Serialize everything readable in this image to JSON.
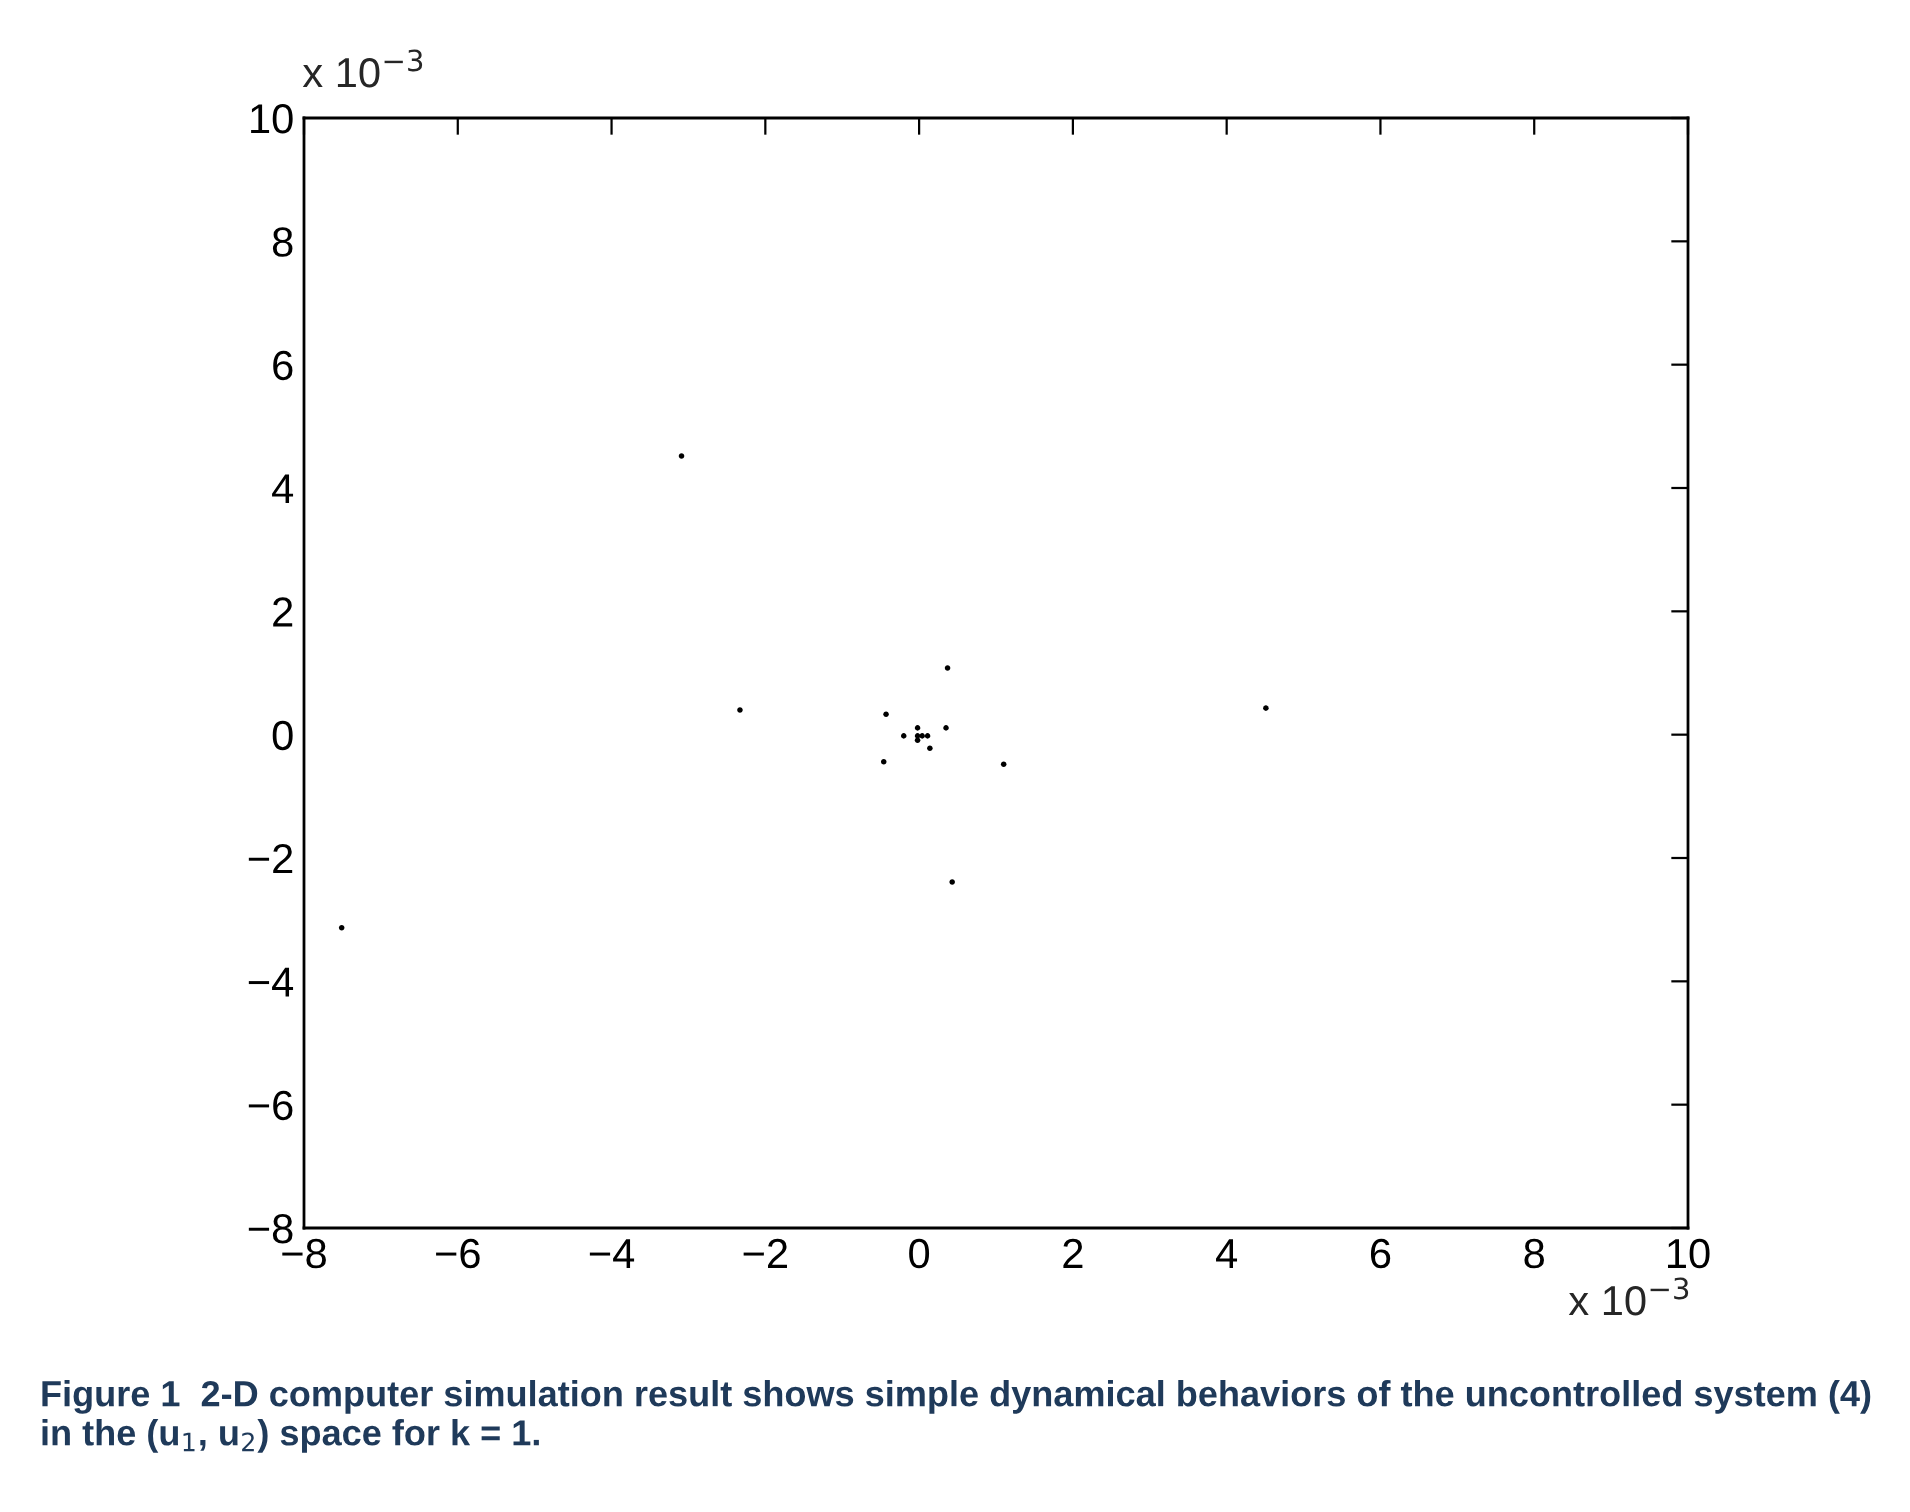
{
  "chart_data": {
    "type": "scatter",
    "color": "#000000",
    "marker": "circle",
    "grid": false,
    "legend": false,
    "x": [
      -3.09,
      -2.33,
      -7.51,
      4.51,
      0.37,
      -0.43,
      -0.46,
      0.35,
      1.1,
      0.43,
      -0.2,
      -0.02,
      -0.02,
      0.04,
      0.11,
      -0.02,
      0.14
    ],
    "values": [
      4.52,
      0.4,
      -3.13,
      0.43,
      1.08,
      0.33,
      -0.44,
      0.11,
      -0.48,
      -2.39,
      -0.02,
      0.11,
      -0.02,
      -0.02,
      -0.02,
      -0.09,
      -0.22
    ],
    "xlim": [
      -8,
      10
    ],
    "ylim": [
      -8,
      10
    ],
    "xticks": [
      {
        "value": -8,
        "label": "−8"
      },
      {
        "value": -6,
        "label": "−6"
      },
      {
        "value": -4,
        "label": "−4"
      },
      {
        "value": -2,
        "label": "−2"
      },
      0,
      2,
      4,
      6,
      8,
      10
    ],
    "yticks": [
      {
        "value": -8,
        "label": "−8"
      },
      {
        "value": -6,
        "label": "−6"
      },
      {
        "value": -4,
        "label": "−4"
      },
      {
        "value": -2,
        "label": "−2"
      },
      0,
      2,
      4,
      6,
      8,
      10
    ],
    "annotations": [
      "x 10$^{−3}$",
      "x 10$^{−3}$",
      "Figure 1  2-D computer simulation result shows simple dynamical behaviors of the uncontrolled system (4) in the (u$_{1}$, u$_{2}$) space for k = 1."
    ]
  }
}
